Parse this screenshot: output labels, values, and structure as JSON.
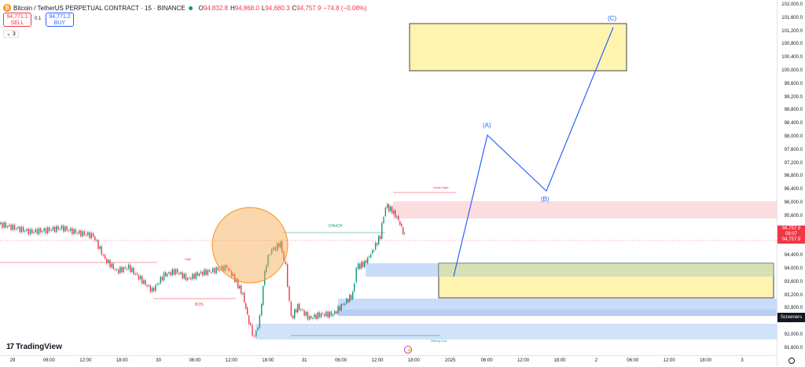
{
  "header": {
    "symbol": "Bitcoin / TetherUS PERPETUAL CONTRACT · 15 · BINANCE",
    "o_label": "O",
    "o_value": "94,832.8",
    "h_label": "H",
    "h_value": "94,868.0",
    "l_label": "L",
    "l_value": "94,680.3",
    "c_label": "C",
    "c_value": "94,757.9",
    "change": "−74.8 (−0.08%)"
  },
  "trade": {
    "sell_price": "94,771.1",
    "sell_label": "SELL",
    "spread": "0.1",
    "buy_price": "94,771.2",
    "buy_label": "BUY",
    "layers_count": "3"
  },
  "price_axis": [
    "102,000.0",
    "101,600.0",
    "101,200.0",
    "100,800.0",
    "100,400.0",
    "100,000.0",
    "99,600.0",
    "99,200.0",
    "98,800.0",
    "98,400.0",
    "98,000.0",
    "97,600.0",
    "97,200.0",
    "96,800.0",
    "96,400.0",
    "96,000.0",
    "95,600.0",
    "95,200.0",
    "94,800.0",
    "94,400.0",
    "94,000.0",
    "93,600.0",
    "93,200.0",
    "92,800.0",
    "92,400.0",
    "92,000.0",
    "91,600.0"
  ],
  "current_price": {
    "value": "94,757.9",
    "countdown": "08:07",
    "repeat": "94,757.9"
  },
  "screeners_label": "Screeners",
  "time_axis": [
    "29",
    "06:00",
    "12:00",
    "18:00",
    "30",
    "06:00",
    "12:00",
    "18:00",
    "31",
    "06:00",
    "12:00",
    "18:00",
    "2025",
    "06:00",
    "12:00",
    "18:00",
    "2",
    "06:00",
    "12:00",
    "18:00",
    "3"
  ],
  "waves": {
    "a": "(A)",
    "b": "(B)",
    "c": "(C)"
  },
  "labels": {
    "bos": "BOS",
    "choch": "CHoCH",
    "weak_high": "Weak High",
    "strong_low": "Strong Low",
    "high": "High"
  },
  "logo": {
    "mark": "17",
    "text": "TradingView"
  },
  "colors": {
    "up": "#089981",
    "down": "#f23645",
    "wave": "#2962ff",
    "zone_yellow": "#fff3b0",
    "zone_blue": "#bbd3f7",
    "zone_red": "#fbd5d7",
    "circle": "#f7a64a"
  }
}
